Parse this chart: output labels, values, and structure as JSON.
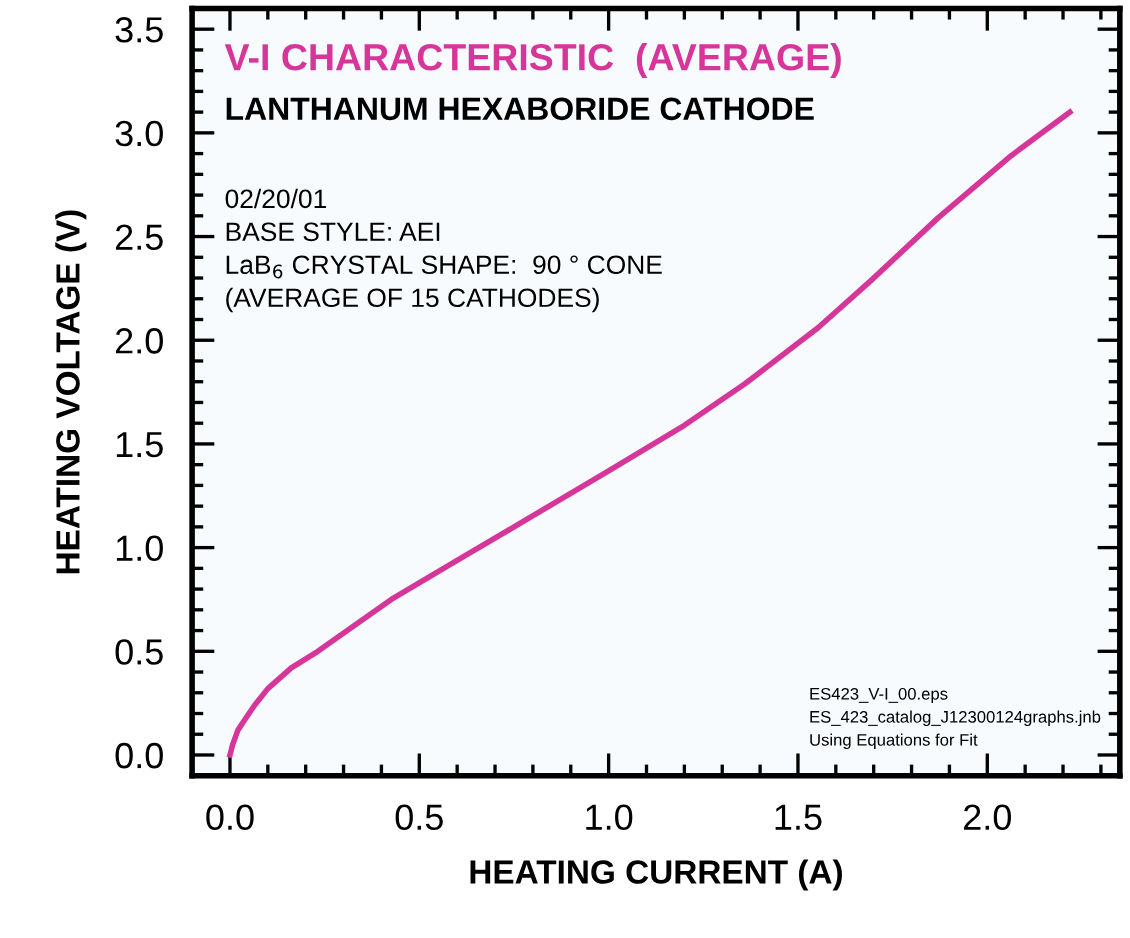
{
  "chart_data": {
    "type": "line",
    "title": "V-I CHARACTERISTIC  (AVERAGE)",
    "subtitle": "LANTHANUM HEXABORIDE CATHODE",
    "xlabel": "HEATING CURRENT (A)",
    "ylabel": "HEATING VOLTAGE (V)",
    "annotations": [
      "02/20/01",
      "BASE STYLE: AEI",
      "LaB$_{6}$ CRYSTAL SHAPE:  90 ° CONE",
      "(AVERAGE OF 15 CATHODES)",
      "ES423_V-I_00.eps",
      "ES_423_catalog_J12300124graphs.jnb",
      "Using Equations for Fit"
    ],
    "series": [
      {
        "color": "#d6369a",
        "x": [
          0,
          0.007,
          0.021,
          0.039,
          0.065,
          0.1,
          0.162,
          0.232,
          0.426,
          0.62,
          0.778,
          1.0,
          1.2,
          1.36,
          1.553,
          1.694,
          1.87,
          2.063,
          2.218
        ],
        "values": [
          0,
          0.05,
          0.12,
          0.17,
          0.24,
          0.32,
          0.42,
          0.5,
          0.75,
          0.96,
          1.13,
          1.37,
          1.59,
          1.79,
          2.06,
          2.29,
          2.59,
          2.89,
          3.1
        ]
      }
    ],
    "xlim": [
      -0.1,
      2.35
    ],
    "ylim": [
      -0.1,
      3.6
    ],
    "xticks": [
      {
        "value": 0,
        "label": "0.0"
      },
      {
        "value": 0.5,
        "label": "0.5"
      },
      {
        "value": 1,
        "label": "1.0"
      },
      {
        "value": 1.5,
        "label": "1.5"
      },
      {
        "value": 2,
        "label": "2.0"
      }
    ],
    "yticks": [
      {
        "value": 0,
        "label": "0.0"
      },
      {
        "value": 0.5,
        "label": "0.5"
      },
      {
        "value": 1,
        "label": "1.0"
      },
      {
        "value": 1.5,
        "label": "1.5"
      },
      {
        "value": 2,
        "label": "2.0"
      },
      {
        "value": 2.5,
        "label": "2.5"
      },
      {
        "value": 3,
        "label": "3.0"
      },
      {
        "value": 3.5,
        "label": "3.5"
      }
    ],
    "grid": false,
    "legend": false,
    "marker": "none",
    "line_style": "solid"
  }
}
